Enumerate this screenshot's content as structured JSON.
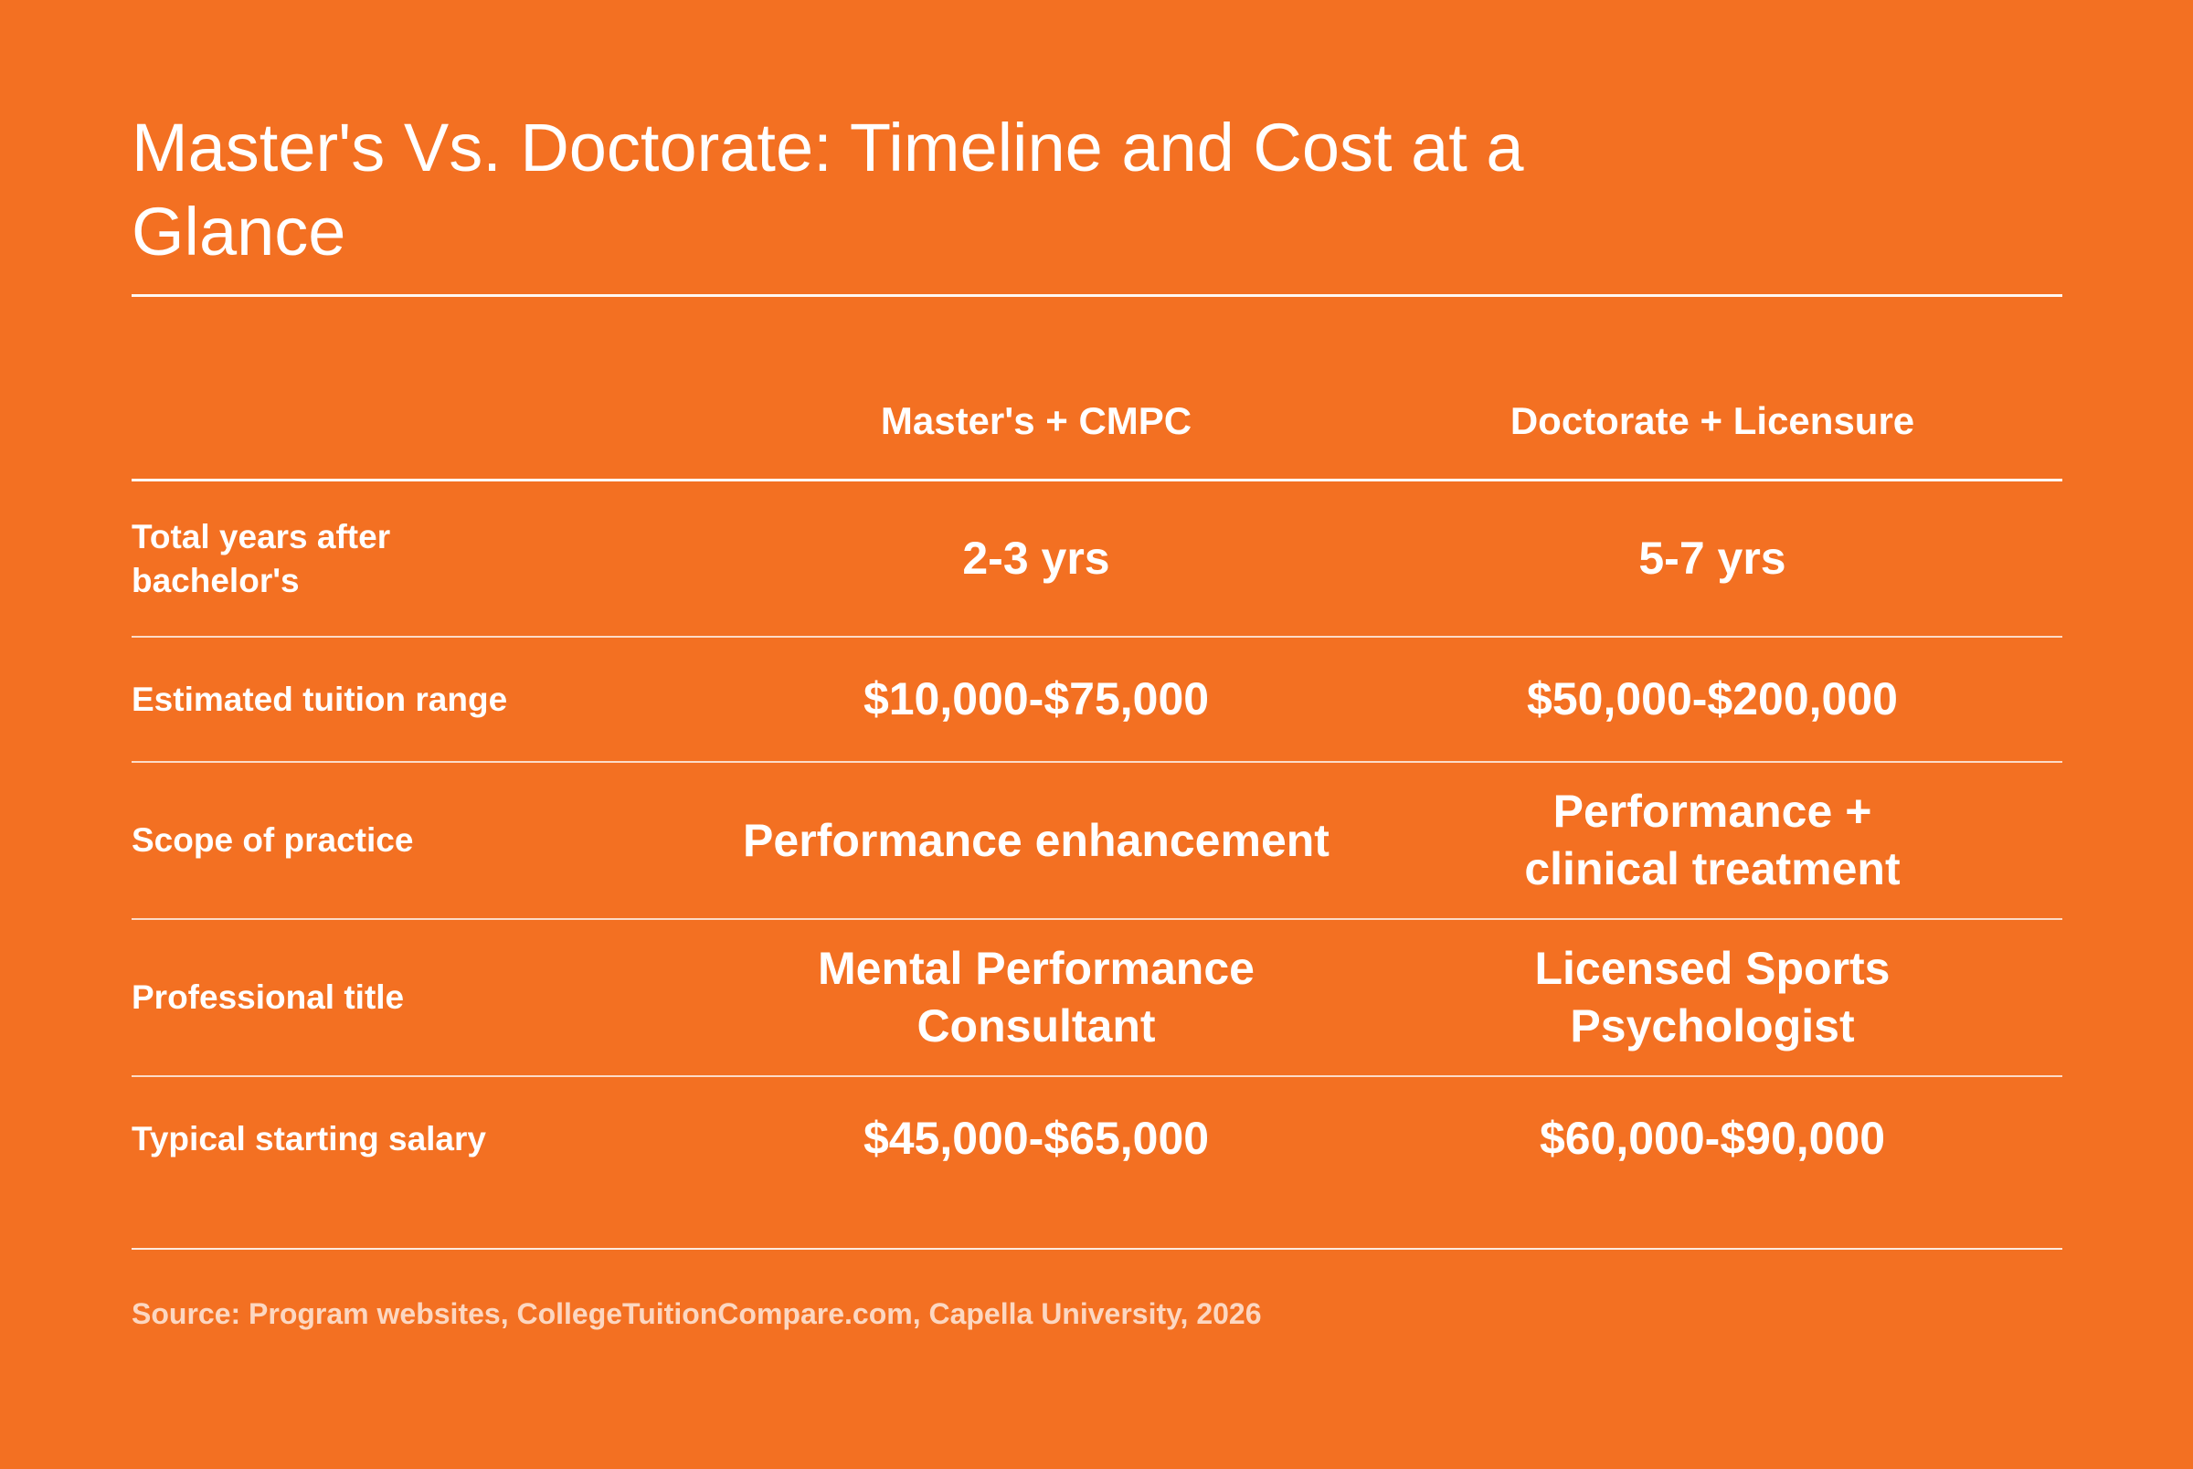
{
  "title": "Master's Vs. Doctorate: Timeline and Cost at a Glance",
  "colors": {
    "background": "#F37022",
    "text": "#FFFFFF"
  },
  "chart_data": {
    "type": "table",
    "columns": [
      "",
      "Master's + CMPC",
      "Doctorate + Licensure"
    ],
    "rows": [
      {
        "label": "Total years after bachelor's",
        "masters": "2-3 yrs",
        "doctorate": "5-7 yrs"
      },
      {
        "label": "Estimated tuition range",
        "masters": "$10,000-$75,000",
        "doctorate": "$50,000-$200,000"
      },
      {
        "label": "Scope of practice",
        "masters": "Performance enhancement",
        "doctorate": "Performance + clinical treatment"
      },
      {
        "label": "Professional title",
        "masters": "Mental Performance Consultant",
        "doctorate": "Licensed Sports Psychologist"
      },
      {
        "label": "Typical starting salary",
        "masters": "$45,000-$65,000",
        "doctorate": "$60,000-$90,000"
      }
    ],
    "source": "Source: Program websites, CollegeTuitionCompare.com, Capella University, 2026"
  }
}
